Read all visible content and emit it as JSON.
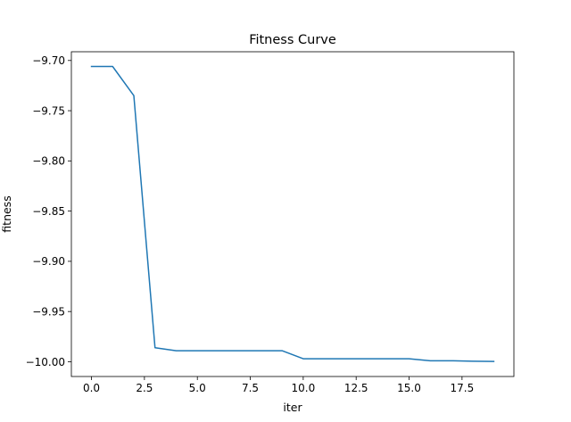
{
  "chart_data": {
    "type": "line",
    "title": "Fitness Curve",
    "xlabel": "iter",
    "ylabel": "fitness",
    "xlim": [
      -0.95,
      19.95
    ],
    "ylim": [
      -10.0147,
      -9.6913
    ],
    "xticks": [
      0.0,
      2.5,
      5.0,
      7.5,
      10.0,
      12.5,
      15.0,
      17.5
    ],
    "xtick_labels": [
      "0.0",
      "2.5",
      "5.0",
      "7.5",
      "10.0",
      "12.5",
      "15.0",
      "17.5"
    ],
    "yticks": [
      -9.7,
      -9.75,
      -9.8,
      -9.85,
      -9.9,
      -9.95,
      -10.0
    ],
    "ytick_labels": [
      "−9.70",
      "−9.75",
      "−9.80",
      "−9.85",
      "−9.90",
      "−9.95",
      "−10.00"
    ],
    "grid": false,
    "line_color": "#1f77b4",
    "series": [
      {
        "x": [
          0,
          1,
          2,
          3,
          4,
          5,
          6,
          7,
          8,
          9,
          10,
          11,
          12,
          13,
          14,
          15,
          16,
          17,
          18,
          19
        ],
        "values": [
          -9.706,
          -9.706,
          -9.735,
          -9.986,
          -9.989,
          -9.989,
          -9.989,
          -9.989,
          -9.989,
          -9.989,
          -9.997,
          -9.997,
          -9.997,
          -9.997,
          -9.997,
          -9.997,
          -9.999,
          -9.999,
          -9.9995,
          -9.9997
        ]
      }
    ]
  }
}
